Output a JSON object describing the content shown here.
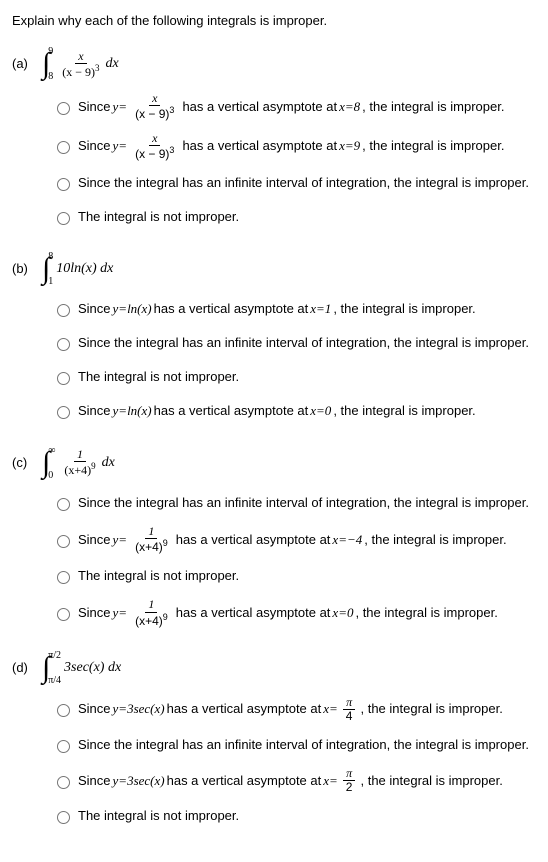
{
  "header": "Explain why each of the following integrals is improper.",
  "problems": [
    {
      "label": "(a)",
      "int_lower": "8",
      "int_upper": "9",
      "integrand_num": "x",
      "integrand_den_base": "(x − 9)",
      "integrand_den_exp": "3",
      "post": " dx",
      "options": [
        {
          "type": "frac",
          "pre": "Since ",
          "y": "y=",
          "num": "x",
          "den_base": "(x − 9)",
          "den_exp": "3",
          "post": " has a vertical asymptote at ",
          "xval": "x=8",
          "tail": ", the integral is improper."
        },
        {
          "type": "frac",
          "pre": "Since ",
          "y": "y=",
          "num": "x",
          "den_base": "(x − 9)",
          "den_exp": "3",
          "post": " has a vertical asymptote at ",
          "xval": "x=9",
          "tail": ", the integral is improper."
        },
        {
          "type": "plain",
          "text": "Since the integral has an infinite interval of integration, the integral is improper."
        },
        {
          "type": "plain",
          "text": "The integral is not improper."
        }
      ]
    },
    {
      "label": "(b)",
      "int_lower": "1",
      "int_upper": "8",
      "integrand_plain": "10ln(x) dx",
      "options": [
        {
          "type": "yfn",
          "pre": "Since ",
          "yfn": "y=ln(x)",
          "post": " has a vertical asymptote at ",
          "xval": "x=1",
          "tail": ", the integral is improper."
        },
        {
          "type": "plain",
          "text": "Since the integral has an infinite interval of integration, the integral is improper."
        },
        {
          "type": "plain",
          "text": "The integral is not improper."
        },
        {
          "type": "yfn",
          "pre": "Since ",
          "yfn": "y=ln(x)",
          "post": " has a vertical asymptote at ",
          "xval": "x=0",
          "tail": ", the integral is improper."
        }
      ]
    },
    {
      "label": "(c)",
      "int_lower": "0",
      "int_upper": "∞",
      "integrand_num": "1",
      "integrand_den_base": "(x+4)",
      "integrand_den_exp": "9",
      "post": " dx",
      "options": [
        {
          "type": "plain",
          "text": "Since the integral has an infinite interval of integration, the integral is improper."
        },
        {
          "type": "frac",
          "pre": "Since ",
          "y": "y=",
          "num": "1",
          "den_base": "(x+4)",
          "den_exp": "9",
          "post": " has a vertical asymptote at ",
          "xval": "x=−4",
          "tail": ", the integral is improper."
        },
        {
          "type": "plain",
          "text": "The integral is not improper."
        },
        {
          "type": "frac",
          "pre": "Since ",
          "y": "y=",
          "num": "1",
          "den_base": "(x+4)",
          "den_exp": "9",
          "post": " has a vertical asymptote at ",
          "xval": "x=0",
          "tail": ", the integral is improper."
        }
      ]
    },
    {
      "label": "(d)",
      "int_lower": "π/4",
      "int_upper": "π/2",
      "integrand_plain": "3sec(x) dx",
      "options": [
        {
          "type": "yfnfrac",
          "pre": "Since ",
          "yfn": "y=3sec(x)",
          "post": " has a vertical asymptote at ",
          "xpre": "x=",
          "fnum": "π",
          "fden": "4",
          "tail": ", the integral is improper."
        },
        {
          "type": "plain",
          "text": "Since the integral has an infinite interval of integration, the integral is improper."
        },
        {
          "type": "yfnfrac",
          "pre": "Since ",
          "yfn": "y=3sec(x)",
          "post": " has a vertical asymptote at ",
          "xpre": "x=",
          "fnum": "π",
          "fden": "2",
          "tail": ", the integral is improper."
        },
        {
          "type": "plain",
          "text": "The integral is not improper."
        }
      ]
    }
  ]
}
